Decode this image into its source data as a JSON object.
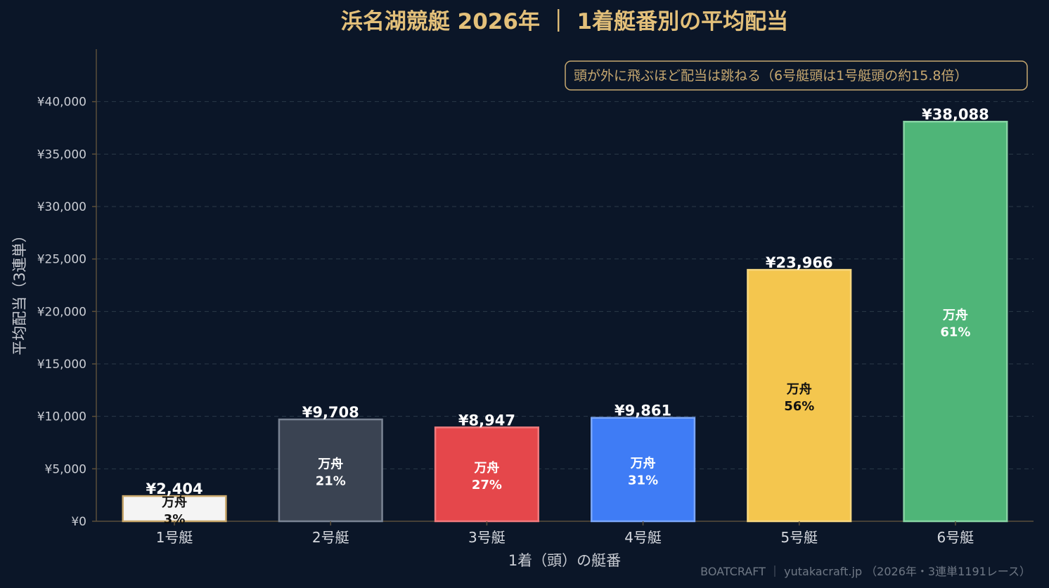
{
  "chart_data": {
    "type": "bar",
    "title": "浜名湖競艇 2026年 ｜ 1着艇番別の平均配当",
    "xlabel": "1着（頭）の艇番",
    "ylabel": "平均配当（3連単）",
    "ylim": [
      0,
      45000
    ],
    "yticks": [
      0,
      5000,
      10000,
      15000,
      20000,
      25000,
      30000,
      35000,
      40000
    ],
    "ytick_labels": [
      "¥0",
      "¥5,000",
      "¥10,000",
      "¥15,000",
      "¥20,000",
      "¥25,000",
      "¥30,000",
      "¥35,000",
      "¥40,000"
    ],
    "grid": true,
    "categories": [
      "1号艇",
      "2号艇",
      "3号艇",
      "4号艇",
      "5号艇",
      "6号艇"
    ],
    "values": [
      2404,
      9708,
      8947,
      9861,
      23966,
      38088
    ],
    "value_labels": [
      "¥2,404",
      "¥9,708",
      "¥8,947",
      "¥9,861",
      "¥23,966",
      "¥38,088"
    ],
    "inner_label_title": "万舟",
    "inner_labels": [
      "3%",
      "21%",
      "27%",
      "31%",
      "56%",
      "61%"
    ],
    "colors": [
      "#f4f4f4",
      "#3a4352",
      "#e5474b",
      "#3f7cf5",
      "#f4c64e",
      "#4fb578"
    ],
    "edge_colors": [
      "#c9a76a",
      "#7a8494",
      "#f07a7d",
      "#7aa6fa",
      "#f7d77f",
      "#86d3a3"
    ],
    "inner_text_colors": [
      "#111111",
      "#ffffff",
      "#ffffff",
      "#ffffff",
      "#111111",
      "#ffffff"
    ],
    "annotation": "頭が外に飛ぶほど配当は跳ねる（6号艇頭は1号艇頭の約15.8倍）",
    "credit": "BOATCRAFT ｜ yutakacraft.jp （2026年・3連単1191レース）"
  }
}
